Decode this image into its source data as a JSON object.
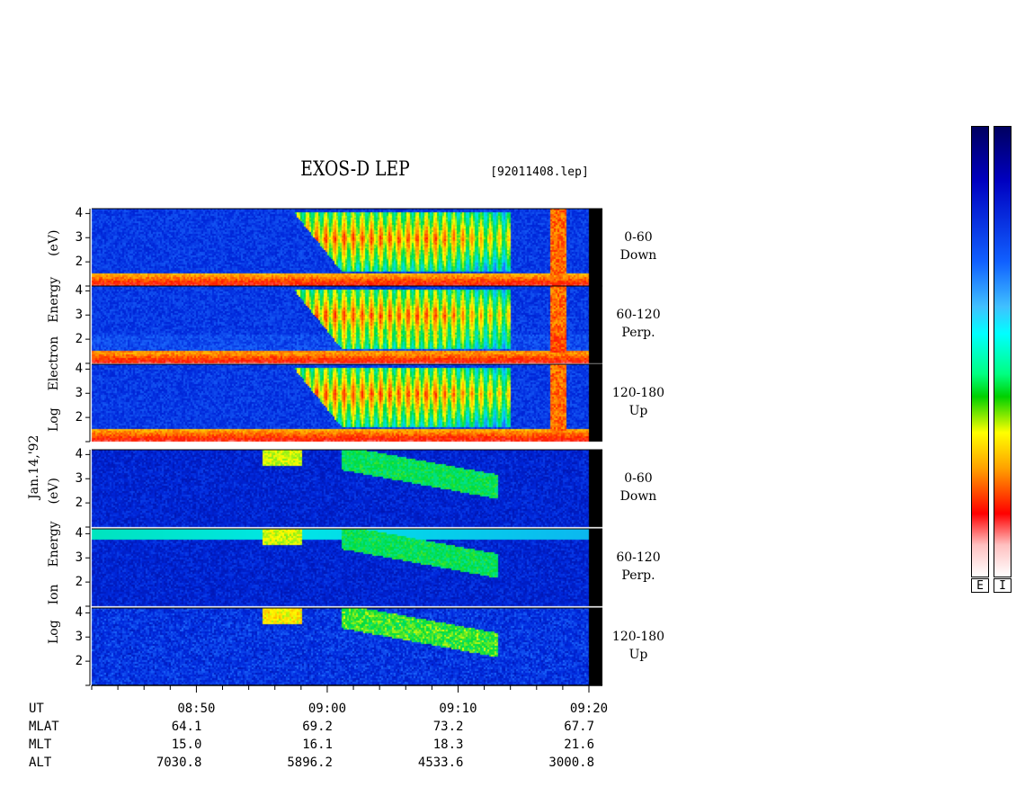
{
  "title": "EXOS-D LEP",
  "file_label": "[92011408.lep]",
  "date_label": "Jan.14,'92",
  "electron_axis": {
    "label_parts": [
      "Log",
      "Electron",
      "Energy",
      "(eV)"
    ]
  },
  "ion_axis": {
    "label_parts": [
      "Log",
      "Ion",
      "Energy",
      "(eV)"
    ]
  },
  "colorbar_labels": [
    "E",
    "I"
  ],
  "orbit_rows": [
    {
      "label": "UT",
      "values": [
        "08:50",
        "09:00",
        "09:10",
        "09:20"
      ]
    },
    {
      "label": "MLAT",
      "values": [
        "64.1",
        "69.2",
        "73.2",
        "67.7"
      ]
    },
    {
      "label": "MLT",
      "values": [
        "15.0",
        "16.1",
        "18.3",
        "21.6"
      ]
    },
    {
      "label": "ALT",
      "values": [
        "7030.8",
        "5896.2",
        "4533.6",
        "3000.8"
      ]
    }
  ],
  "chart_data": {
    "type": "heatmap",
    "title": "EXOS-D LEP",
    "x_axis": {
      "type": "time",
      "range": [
        "08:42",
        "09:20"
      ],
      "tick_labels": [
        "08:50",
        "09:00",
        "09:10",
        "09:20"
      ],
      "minor_tick_minutes": 2
    },
    "y_axis": {
      "label": "Log Energy (eV)",
      "range": [
        1,
        4.2
      ],
      "tick_labels": [
        "2",
        "3",
        "4"
      ]
    },
    "panels": [
      {
        "species": "Electron",
        "pitch_angle": "0-60",
        "direction": "Down"
      },
      {
        "species": "Electron",
        "pitch_angle": "60-120",
        "direction": "Perp."
      },
      {
        "species": "Electron",
        "pitch_angle": "120-180",
        "direction": "Up"
      },
      {
        "species": "Ion",
        "pitch_angle": "0-60",
        "direction": "Down"
      },
      {
        "species": "Ion",
        "pitch_angle": "60-120",
        "direction": "Perp."
      },
      {
        "species": "Ion",
        "pitch_angle": "120-180",
        "direction": "Up"
      }
    ],
    "colorscale": [
      "#ffffff",
      "#ff0000",
      "#ffa500",
      "#ffff00",
      "#00ff00",
      "#00ffff",
      "#3399ff",
      "#000080"
    ],
    "colorbars": [
      "E",
      "I"
    ]
  }
}
